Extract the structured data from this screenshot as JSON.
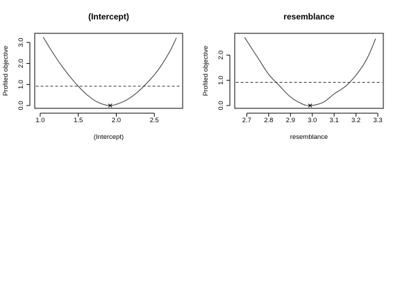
{
  "chart_data": [
    {
      "type": "line",
      "title": "(Intercept)",
      "xlabel": "(Intercept)",
      "ylabel": "Profiled objective",
      "xlim": [
        1.0,
        2.8
      ],
      "ylim": [
        0.0,
        3.3
      ],
      "x_ticks": [
        1.0,
        1.5,
        2.0,
        2.5
      ],
      "x_tick_labels": [
        "1.0",
        "1.5",
        "2.0",
        "2.5"
      ],
      "y_ticks": [
        0.0,
        1.0,
        2.0,
        3.0
      ],
      "y_tick_labels": [
        "0.0",
        "1.0",
        "2.0",
        "3.0"
      ],
      "series": [
        {
          "style": "solid",
          "color": "#333333",
          "x": [
            1.04,
            1.15,
            1.3,
            1.45,
            1.6,
            1.75,
            1.92,
            2.1,
            2.25,
            2.4,
            2.55,
            2.7,
            2.79
          ],
          "y": [
            3.25,
            2.6,
            1.8,
            1.12,
            0.56,
            0.17,
            0.0,
            0.2,
            0.55,
            1.06,
            1.69,
            2.55,
            3.22
          ]
        }
      ],
      "reference_line": {
        "y": 0.92,
        "style": "dashed",
        "color": "#333333"
      },
      "minimum_marker": {
        "x": 1.92,
        "y": 0.0,
        "symbol": "x"
      },
      "grid": false,
      "box": true
    },
    {
      "type": "line",
      "title": "resemblance",
      "xlabel": "resemblance",
      "ylabel": "Profiled objective",
      "xlim": [
        2.67,
        3.3
      ],
      "ylim": [
        0.0,
        2.75
      ],
      "x_ticks": [
        2.7,
        2.8,
        2.9,
        3.0,
        3.1,
        3.2,
        3.3
      ],
      "x_tick_labels": [
        "2.7",
        "2.8",
        "2.9",
        "3.0",
        "3.1",
        "3.2",
        "3.3"
      ],
      "y_ticks": [
        0.0,
        1.0,
        2.0
      ],
      "y_tick_labels": [
        "0.0",
        "1.0",
        "2.0"
      ],
      "series": [
        {
          "style": "solid",
          "color": "#333333",
          "x": [
            2.69,
            2.75,
            2.8,
            2.85,
            2.9,
            2.95,
            2.99,
            3.05,
            3.1,
            3.15,
            3.2,
            3.25,
            3.29
          ],
          "y": [
            2.7,
            1.9,
            1.24,
            0.78,
            0.34,
            0.08,
            0.0,
            0.13,
            0.46,
            0.75,
            1.2,
            1.85,
            2.65
          ]
        }
      ],
      "reference_line": {
        "y": 0.92,
        "style": "dashed",
        "color": "#333333"
      },
      "minimum_marker": {
        "x": 2.99,
        "y": 0.0,
        "symbol": "x"
      },
      "grid": false,
      "box": true
    }
  ]
}
